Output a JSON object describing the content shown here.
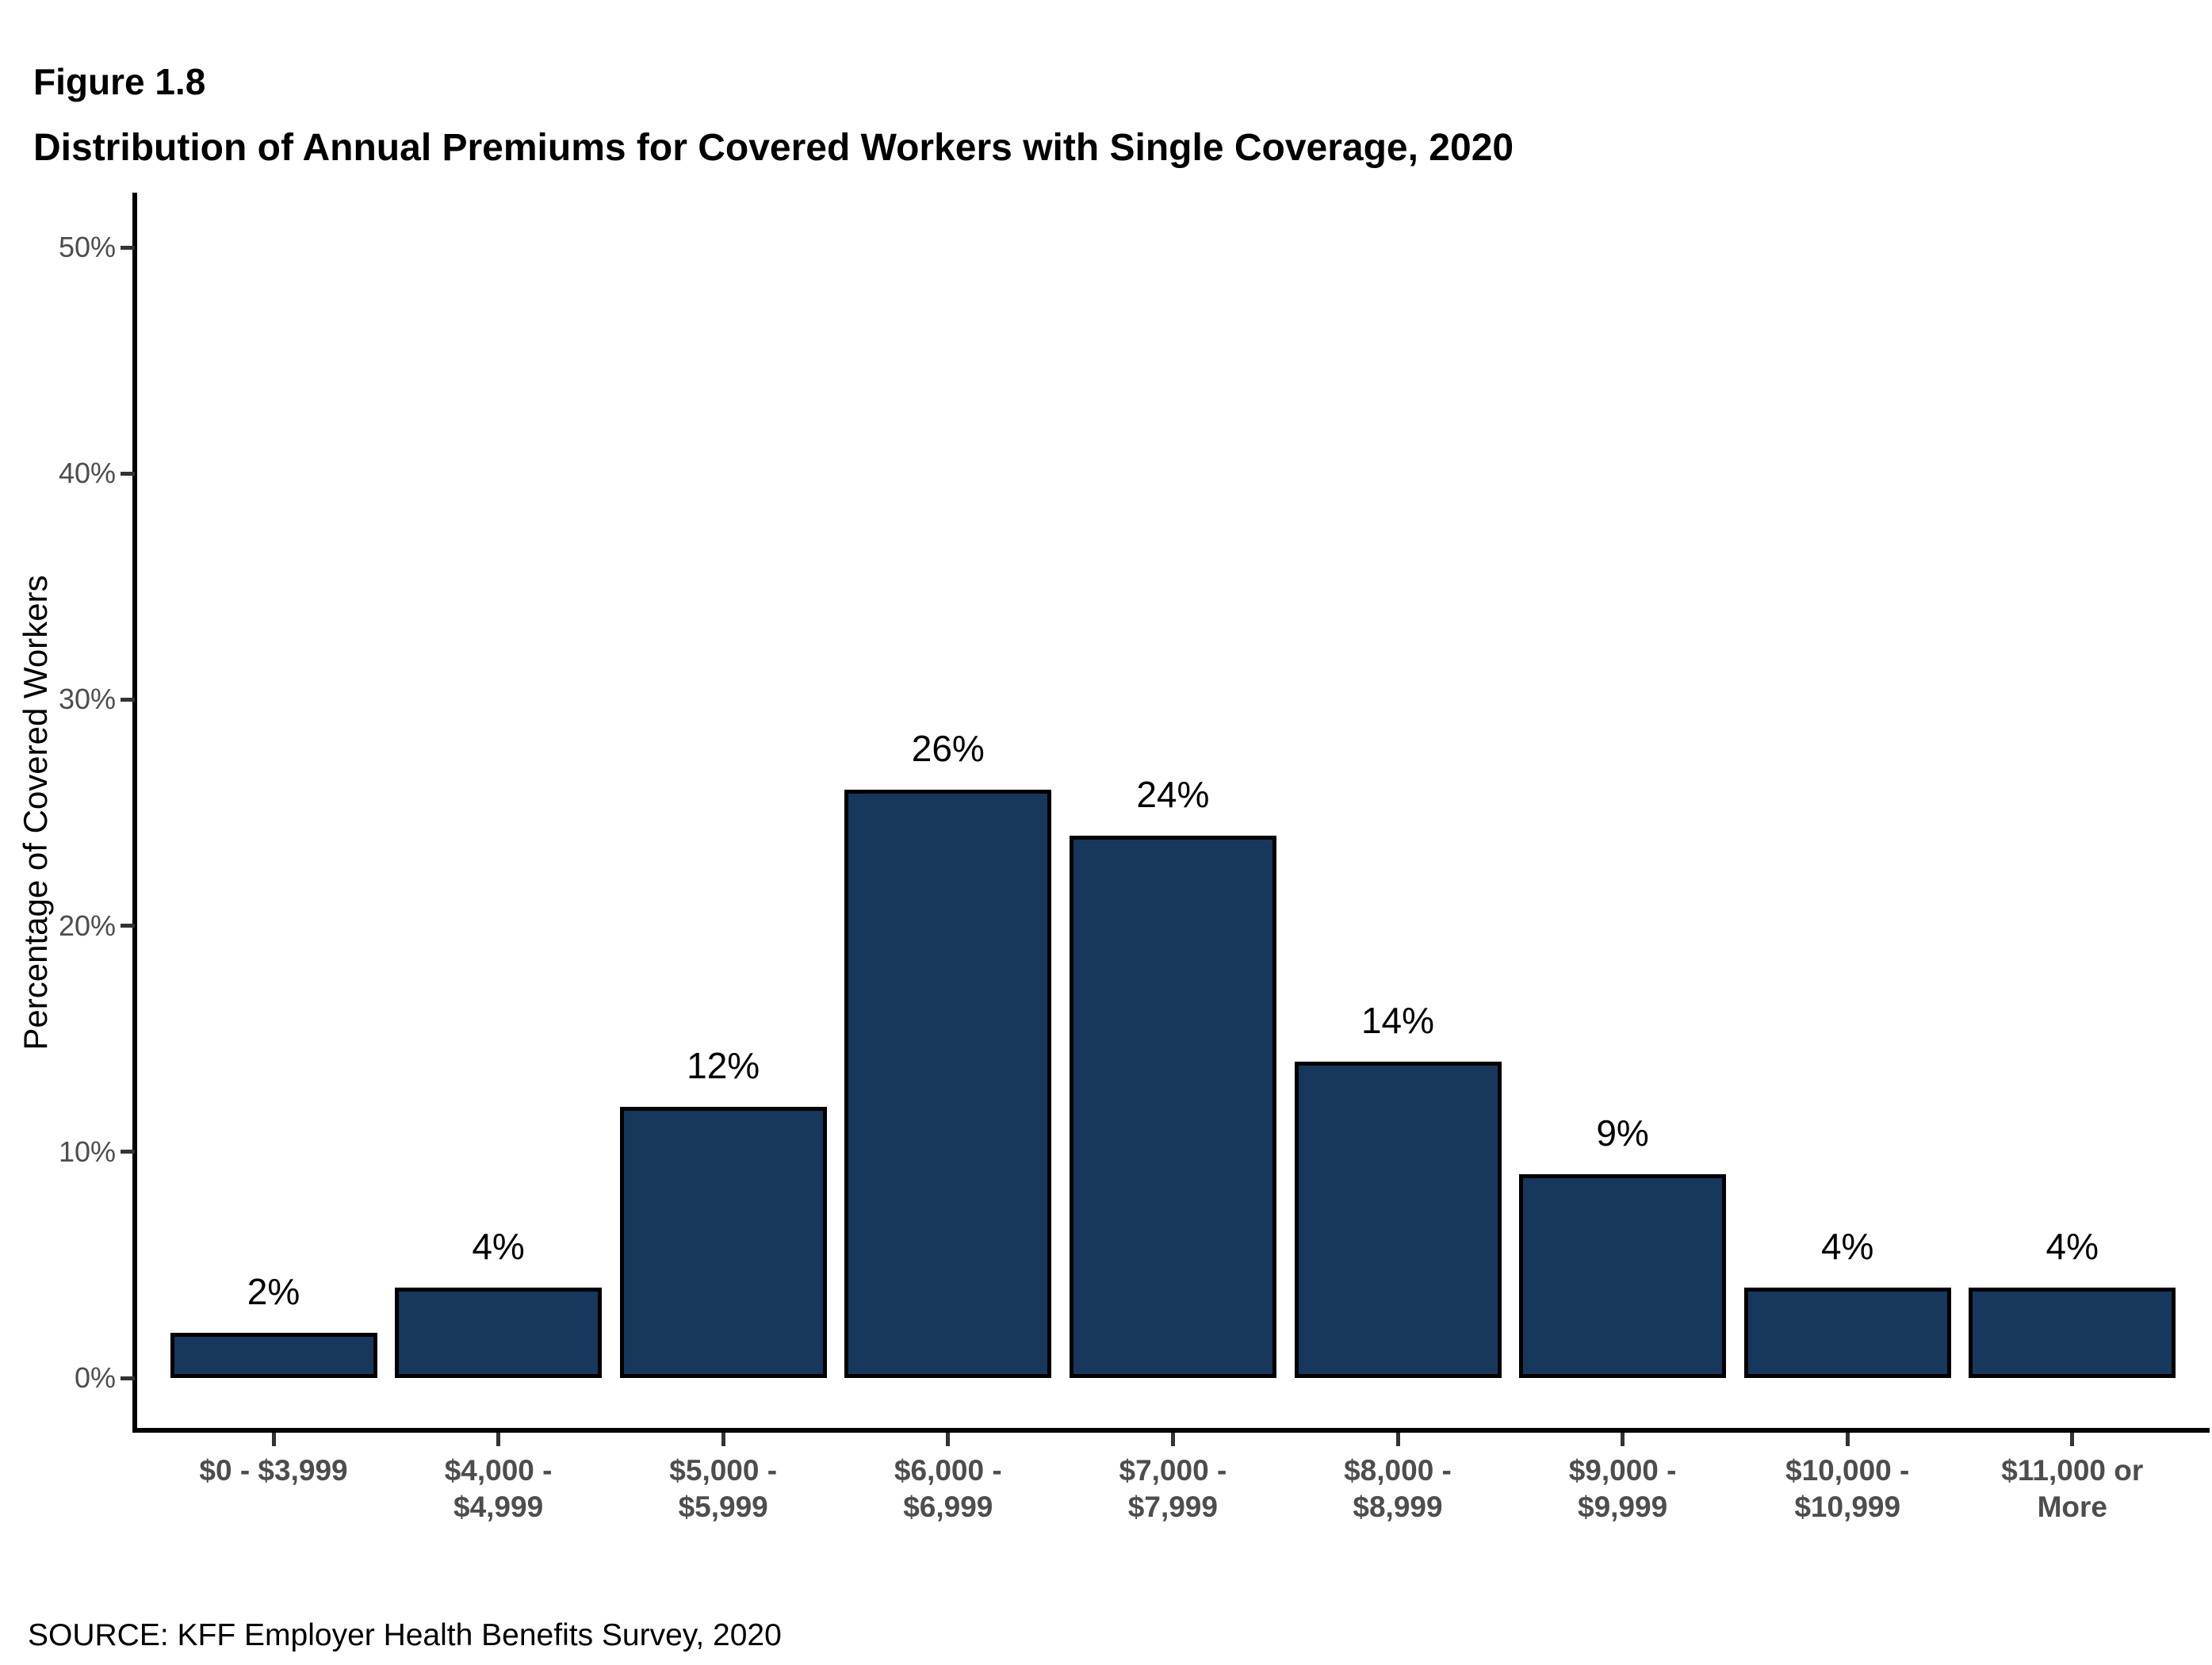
{
  "figure_label": "Figure 1.8",
  "title": "Distribution of Annual Premiums for Covered Workers with Single Coverage, 2020",
  "source": "SOURCE: KFF Employer Health Benefits Survey, 2020",
  "chart_data": {
    "type": "bar",
    "title": "Distribution of Annual Premiums for Covered Workers with Single Coverage, 2020",
    "categories": [
      "$0 - $3,999",
      "$4,000 - $4,999",
      "$5,000 - $5,999",
      "$6,000 - $6,999",
      "$7,000 - $7,999",
      "$8,000 - $8,999",
      "$9,000 - $9,999",
      "$10,000 - $10,999",
      "$11,000 or More"
    ],
    "category_lines": [
      [
        "$0 - $3,999"
      ],
      [
        "$4,000 -",
        "$4,999"
      ],
      [
        "$5,000 -",
        "$5,999"
      ],
      [
        "$6,000 -",
        "$6,999"
      ],
      [
        "$7,000 -",
        "$7,999"
      ],
      [
        "$8,000 -",
        "$8,999"
      ],
      [
        "$9,000 -",
        "$9,999"
      ],
      [
        "$10,000 -",
        "$10,999"
      ],
      [
        "$11,000 or",
        "More"
      ]
    ],
    "values": [
      2,
      4,
      12,
      26,
      24,
      14,
      9,
      4,
      4
    ],
    "value_labels": [
      "2%",
      "4%",
      "12%",
      "26%",
      "24%",
      "14%",
      "9%",
      "4%",
      "4%"
    ],
    "xlabel": "",
    "ylabel": "Percentage of Covered Workers",
    "ylim": [
      0,
      50
    ],
    "yticks": [
      0,
      10,
      20,
      30,
      40,
      50
    ],
    "ytick_labels": [
      "0%",
      "10%",
      "20%",
      "30%",
      "40%",
      "50%"
    ],
    "grid": false,
    "legend_position": "none",
    "bar_color": "#17375C",
    "bar_border_color": "#000000",
    "axis_color": "#000000",
    "tick_label_color": "#4d4d4d"
  }
}
